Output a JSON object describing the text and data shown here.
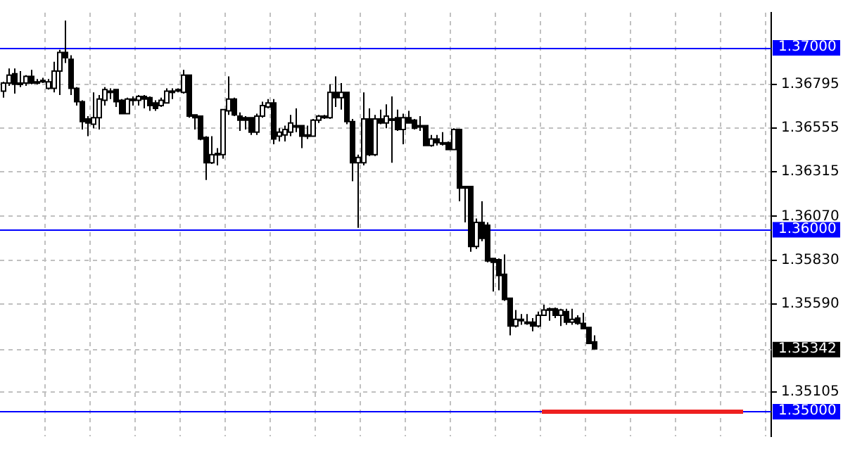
{
  "chart_data": {
    "type": "candlestick",
    "tick_labels": "y",
    "grid": true,
    "categories": [
      null,
      null,
      null,
      null,
      null,
      null,
      null,
      null,
      null,
      null,
      null,
      null,
      null,
      null,
      null,
      null,
      null,
      null,
      null,
      null,
      null,
      null,
      null,
      null,
      null,
      null,
      null,
      null,
      null,
      null,
      null,
      null,
      null,
      null,
      null,
      null,
      null,
      null,
      null,
      null,
      null,
      null,
      null,
      null,
      null,
      null,
      null,
      null,
      null,
      null,
      null,
      null,
      null,
      null,
      null,
      null,
      null,
      null,
      null,
      null,
      null,
      null,
      null,
      null,
      null,
      null,
      null,
      null,
      null,
      null,
      null,
      null,
      null,
      null,
      null,
      null,
      null,
      null,
      null,
      null,
      null,
      null,
      null,
      null,
      null,
      null,
      null,
      null,
      null,
      null,
      null,
      null,
      null,
      null,
      null,
      null,
      null,
      null,
      null,
      null,
      null,
      null,
      null,
      null,
      null,
      null,
      null,
      null,
      null,
      null,
      null,
      null,
      null,
      null,
      null,
      null,
      null,
      null,
      null,
      null,
      null,
      null,
      null,
      null,
      null,
      null,
      null,
      null,
      null,
      null,
      null,
      null,
      null,
      null,
      null,
      null,
      null
    ],
    "ohlc": [
      [
        1.36759,
        1.3681,
        1.36723,
        1.36803
      ],
      [
        1.36803,
        1.36883,
        1.36788,
        1.36847
      ],
      [
        1.36854,
        1.36883,
        1.36745,
        1.36796
      ],
      [
        1.36803,
        1.36869,
        1.36781,
        1.36796
      ],
      [
        1.36803,
        1.36847,
        1.36788,
        1.3684
      ],
      [
        1.3684,
        1.36876,
        1.36796,
        1.36803
      ],
      [
        1.3681,
        1.36825,
        1.36796,
        1.36803
      ],
      [
        1.36818,
        1.36832,
        1.36803,
        1.3681
      ],
      [
        1.36774,
        1.36825,
        1.36767,
        1.3681
      ],
      [
        1.36774,
        1.3692,
        1.36752,
        1.36869
      ],
      [
        1.36869,
        1.36986,
        1.36737,
        1.36971
      ],
      [
        1.36971,
        1.37146,
        1.36913,
        1.36942
      ],
      [
        1.36934,
        1.36956,
        1.36737,
        1.36774
      ],
      [
        1.36774,
        1.36781,
        1.36679,
        1.36701
      ],
      [
        1.36701,
        1.36708,
        1.36548,
        1.36591
      ],
      [
        1.36606,
        1.36621,
        1.36511,
        1.36584
      ],
      [
        1.36577,
        1.36752,
        1.36555,
        1.36613
      ],
      [
        1.36613,
        1.36737,
        1.36548,
        1.36715
      ],
      [
        1.36708,
        1.36781,
        1.36679,
        1.36767
      ],
      [
        1.36759,
        1.36774,
        1.36715,
        1.36759
      ],
      [
        1.36767,
        1.36767,
        1.36672,
        1.36701
      ],
      [
        1.36708,
        1.36715,
        1.36635,
        1.36635
      ],
      [
        1.36635,
        1.36723,
        1.36635,
        1.36715
      ],
      [
        1.36715,
        1.3673,
        1.36679,
        1.36715
      ],
      [
        1.36708,
        1.36737,
        1.36679,
        1.3673
      ],
      [
        1.3673,
        1.36737,
        1.36664,
        1.36715
      ],
      [
        1.36723,
        1.3673,
        1.3665,
        1.36679
      ],
      [
        1.36694,
        1.36708,
        1.3665,
        1.36664
      ],
      [
        1.36679,
        1.36723,
        1.36672,
        1.36708
      ],
      [
        1.36694,
        1.36774,
        1.36694,
        1.36759
      ],
      [
        1.36759,
        1.36774,
        1.36715,
        1.36759
      ],
      [
        1.36767,
        1.36774,
        1.36752,
        1.36767
      ],
      [
        1.36752,
        1.36876,
        1.36745,
        1.36847
      ],
      [
        1.36847,
        1.36847,
        1.36613,
        1.36621
      ],
      [
        1.36628,
        1.36628,
        1.36548,
        1.36613
      ],
      [
        1.36621,
        1.36621,
        1.36489,
        1.36496
      ],
      [
        1.36504,
        1.36511,
        1.3627,
        1.36365
      ],
      [
        1.36365,
        1.36511,
        1.36358,
        1.36409
      ],
      [
        1.36409,
        1.36445,
        1.3635,
        1.36416
      ],
      [
        1.36409,
        1.36657,
        1.36387,
        1.36657
      ],
      [
        1.3665,
        1.3684,
        1.36628,
        1.36715
      ],
      [
        1.36715,
        1.36723,
        1.36621,
        1.36628
      ],
      [
        1.36621,
        1.36642,
        1.3654,
        1.36599
      ],
      [
        1.36613,
        1.36621,
        1.36548,
        1.36599
      ],
      [
        1.36613,
        1.36613,
        1.36518,
        1.36533
      ],
      [
        1.36533,
        1.36635,
        1.36518,
        1.36621
      ],
      [
        1.36621,
        1.36701,
        1.36613,
        1.36679
      ],
      [
        1.36672,
        1.36715,
        1.36664,
        1.36694
      ],
      [
        1.36694,
        1.36715,
        1.36467,
        1.36496
      ],
      [
        1.36511,
        1.36555,
        1.36482,
        1.36533
      ],
      [
        1.36518,
        1.36569,
        1.36482,
        1.36548
      ],
      [
        1.36533,
        1.36628,
        1.36511,
        1.36584
      ],
      [
        1.36569,
        1.36664,
        1.36533,
        1.36569
      ],
      [
        1.36569,
        1.36569,
        1.36445,
        1.36511
      ],
      [
        1.36518,
        1.36569,
        1.36496,
        1.36511
      ],
      [
        1.36511,
        1.36606,
        1.36511,
        1.36599
      ],
      [
        1.36599,
        1.36628,
        1.36584,
        1.36621
      ],
      [
        1.36621,
        1.36628,
        1.36606,
        1.36613
      ],
      [
        1.36613,
        1.36796,
        1.36606,
        1.36752
      ],
      [
        1.36752,
        1.3684,
        1.36672,
        1.36723
      ],
      [
        1.36723,
        1.36803,
        1.36657,
        1.36752
      ],
      [
        1.36752,
        1.36752,
        1.36577,
        1.36591
      ],
      [
        1.36591,
        1.36606,
        1.36263,
        1.36365
      ],
      [
        1.36365,
        1.36409,
        1.36007,
        1.36394
      ],
      [
        1.36365,
        1.36752,
        1.3635,
        1.36606
      ],
      [
        1.36606,
        1.36664,
        1.36402,
        1.36409
      ],
      [
        1.36409,
        1.36628,
        1.36402,
        1.36606
      ],
      [
        1.36606,
        1.36657,
        1.36577,
        1.36584
      ],
      [
        1.36584,
        1.36686,
        1.36555,
        1.36621
      ],
      [
        1.36606,
        1.3673,
        1.36365,
        1.36599
      ],
      [
        1.36613,
        1.36657,
        1.3654,
        1.36548
      ],
      [
        1.36548,
        1.36635,
        1.36467,
        1.36613
      ],
      [
        1.36613,
        1.3665,
        1.36584,
        1.36584
      ],
      [
        1.36599,
        1.36606,
        1.36548,
        1.36555
      ],
      [
        1.36569,
        1.36621,
        1.3654,
        1.36569
      ],
      [
        1.36569,
        1.36569,
        1.3646,
        1.3646
      ],
      [
        1.3646,
        1.36518,
        1.36453,
        1.36496
      ],
      [
        1.36496,
        1.36518,
        1.3646,
        1.36475
      ],
      [
        1.36475,
        1.36533,
        1.3646,
        1.36475
      ],
      [
        1.36475,
        1.36482,
        1.36438,
        1.36438
      ],
      [
        1.36438,
        1.36555,
        1.36438,
        1.36548
      ],
      [
        1.36548,
        1.36548,
        1.36153,
        1.36226
      ],
      [
        1.36234,
        1.36234,
        1.36037,
        1.36226
      ],
      [
        1.36234,
        1.36234,
        1.35876,
        1.35905
      ],
      [
        1.35905,
        1.36058,
        1.35891,
        1.36037
      ],
      [
        1.36037,
        1.36153,
        1.35934,
        1.35949
      ],
      [
        1.36022,
        1.36037,
        1.35818,
        1.35825
      ],
      [
        1.35839,
        1.35839,
        1.35657,
        1.35818
      ],
      [
        1.35832,
        1.35839,
        1.35664,
        1.35745
      ],
      [
        1.35752,
        1.35861,
        1.35606,
        1.35613
      ],
      [
        1.3562,
        1.3562,
        1.35416,
        1.35467
      ],
      [
        1.35467,
        1.35555,
        1.3546,
        1.35504
      ],
      [
        1.35504,
        1.35533,
        1.35474,
        1.35496
      ],
      [
        1.35489,
        1.35533,
        1.35474,
        1.35489
      ],
      [
        1.35489,
        1.35511,
        1.35438,
        1.35467
      ],
      [
        1.35467,
        1.35547,
        1.3546,
        1.35526
      ],
      [
        1.35526,
        1.35584,
        1.35526,
        1.35555
      ],
      [
        1.35562,
        1.35569,
        1.35496,
        1.35555
      ],
      [
        1.35562,
        1.35569,
        1.35511,
        1.35526
      ],
      [
        1.35526,
        1.35562,
        1.35467,
        1.35555
      ],
      [
        1.35547,
        1.35562,
        1.35474,
        1.35489
      ],
      [
        1.35489,
        1.35562,
        1.35474,
        1.35504
      ],
      [
        1.35511,
        1.35526,
        1.35474,
        1.35482
      ],
      [
        1.35482,
        1.3554,
        1.35453,
        1.35453
      ],
      [
        1.3546,
        1.3546,
        1.35372,
        1.35372
      ],
      [
        1.3538,
        1.35416,
        1.35342,
        1.35342
      ],
      null,
      null,
      null,
      null,
      null,
      null,
      null,
      null,
      null,
      null,
      null,
      null,
      null,
      null,
      null,
      null,
      null,
      null,
      null,
      null,
      null,
      null,
      null,
      null,
      null,
      null,
      null,
      null,
      null,
      null,
      null
    ],
    "ylim": [
      1.34861,
      1.3719
    ],
    "yticks": [
      1.36795,
      1.36555,
      1.36315,
      {
        "value": 1.3607,
        "label": "1.36070"
      },
      {
        "value": 1.3583,
        "label": "1.35830"
      },
      {
        "value": 1.3559,
        "label": "1.35590"
      },
      1.35105
    ],
    "ref_lines": [
      {
        "axis": "y",
        "value": 1.37,
        "label": "1.37000",
        "color": "#0000ff"
      },
      {
        "axis": "y",
        "value": 1.36,
        "label": "1.36000",
        "color": "#0000ff"
      },
      {
        "axis": "y",
        "value": 1.35,
        "label": "1.35000",
        "color": "#0000ff"
      },
      {
        "axis": "y",
        "value": 1.35342,
        "label": "1.35342",
        "color": "#c0c0c0",
        "line_style": "dashed"
      }
    ]
  }
}
